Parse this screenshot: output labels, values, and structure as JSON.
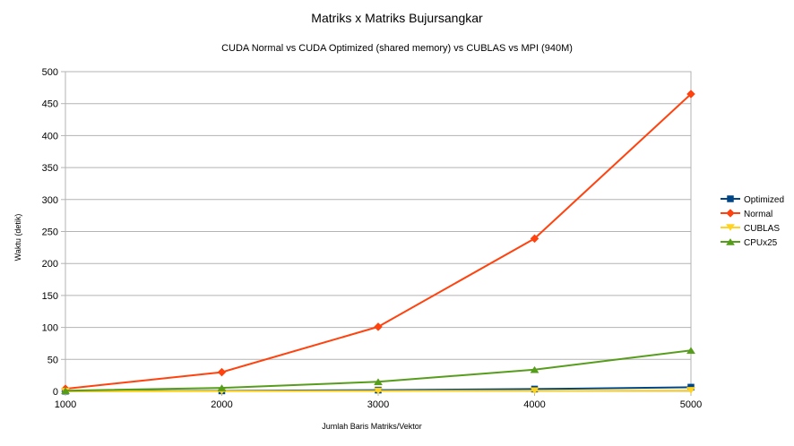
{
  "chart_data": {
    "type": "line",
    "title": "Matriks x Matriks Bujursangkar",
    "subtitle": "CUDA Normal vs CUDA Optimized (shared memory) vs CUBLAS vs MPI (940M)",
    "xlabel": "Jumlah Baris Matriks/Vektor",
    "ylabel": "Waktu (detik)",
    "x": [
      1000,
      2000,
      3000,
      4000,
      5000
    ],
    "ylim": [
      0,
      500
    ],
    "yticks": [
      0,
      50,
      100,
      150,
      200,
      250,
      300,
      350,
      400,
      450,
      500
    ],
    "grid": "horizontal",
    "legend_position": "right",
    "series": [
      {
        "name": "Optimized",
        "color": "#004586",
        "marker": "square",
        "values": [
          0.3,
          0.8,
          2.0,
          3.6,
          6.5
        ]
      },
      {
        "name": "Normal",
        "color": "#ff420e",
        "marker": "diamond",
        "values": [
          4,
          30,
          101,
          239,
          465
        ]
      },
      {
        "name": "CUBLAS",
        "color": "#ffd320",
        "marker": "triangle-down",
        "values": [
          0.1,
          0.3,
          0.6,
          1.0,
          1.5
        ]
      },
      {
        "name": "CPUx25",
        "color": "#579d1c",
        "marker": "triangle-up",
        "values": [
          1,
          5.5,
          15,
          34,
          64
        ]
      }
    ]
  }
}
